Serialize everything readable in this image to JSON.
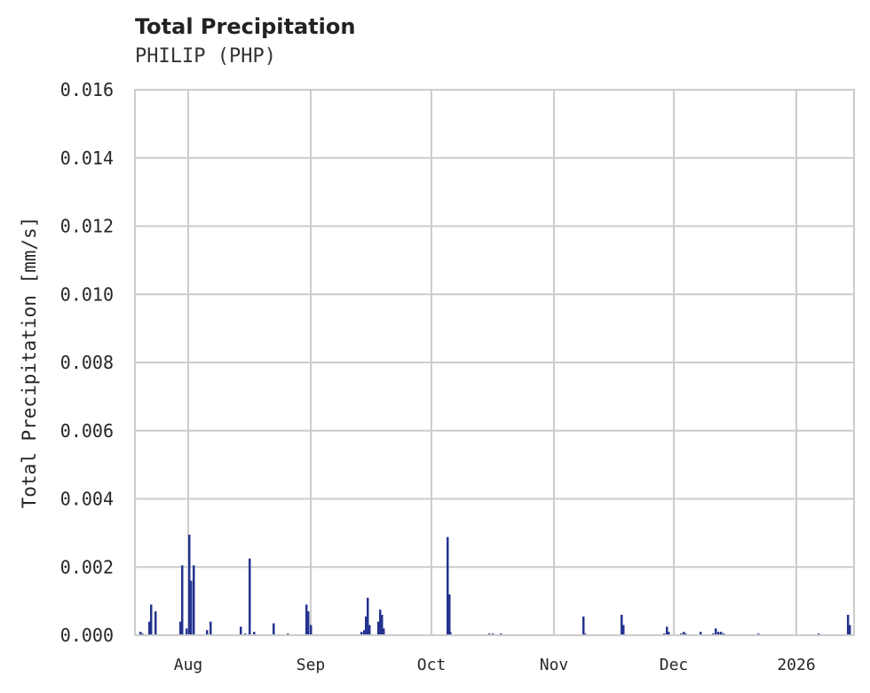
{
  "chart_data": {
    "type": "bar",
    "title": "Total Precipitation",
    "subtitle": "PHILIP (PHP)",
    "xlabel": "",
    "ylabel": "Total Precipitation [mm/s]",
    "ylim": [
      0,
      0.016
    ],
    "yticks": [
      "0.000",
      "0.002",
      "0.004",
      "0.006",
      "0.008",
      "0.010",
      "0.012",
      "0.014",
      "0.016"
    ],
    "xticks": [
      "Aug",
      "Sep",
      "Oct",
      "Nov",
      "Dec",
      "2026"
    ],
    "grid": true,
    "bar_color": "#24338f",
    "series": [
      {
        "name": "Total Precipitation",
        "points": [
          [
            158,
            0.0001
          ],
          [
            160,
            5e-05
          ],
          [
            168,
            0.0004
          ],
          [
            170,
            0.0009
          ],
          [
            175,
            0.0007
          ],
          [
            203,
            0.0004
          ],
          [
            205,
            0.00205
          ],
          [
            210,
            0.0002
          ],
          [
            213,
            0.00295
          ],
          [
            215,
            0.0016
          ],
          [
            218,
            0.00205
          ],
          [
            233,
            0.00015
          ],
          [
            237,
            0.0004
          ],
          [
            271,
            0.00025
          ],
          [
            276,
            5e-05
          ],
          [
            281,
            0.00225
          ],
          [
            286,
            0.0001
          ],
          [
            308,
            0.00035
          ],
          [
            324,
            5e-05
          ],
          [
            345,
            0.0009
          ],
          [
            347,
            0.0007
          ],
          [
            350,
            0.0003
          ],
          [
            407,
            0.0001
          ],
          [
            410,
            0.00015
          ],
          [
            412,
            0.00055
          ],
          [
            414,
            0.0011
          ],
          [
            416,
            0.0003
          ],
          [
            426,
            0.0004
          ],
          [
            428,
            0.00075
          ],
          [
            430,
            0.0006
          ],
          [
            432,
            0.0002
          ],
          [
            504,
            0.00288
          ],
          [
            506,
            0.0012
          ],
          [
            507,
            0.0001
          ],
          [
            551,
            5e-05
          ],
          [
            555,
            5e-05
          ],
          [
            564,
            5e-05
          ],
          [
            657,
            0.00055
          ],
          [
            659,
            5e-05
          ],
          [
            700,
            0.0006
          ],
          [
            702,
            0.0003
          ],
          [
            748,
            5e-05
          ],
          [
            751,
            0.00025
          ],
          [
            753,
            0.0001
          ],
          [
            767,
            5e-05
          ],
          [
            770,
            0.0001
          ],
          [
            772,
            5e-05
          ],
          [
            789,
            0.0001
          ],
          [
            803,
            5e-05
          ],
          [
            806,
            0.0002
          ],
          [
            809,
            0.0001
          ],
          [
            812,
            0.0001
          ],
          [
            815,
            5e-05
          ],
          [
            854,
            5e-05
          ],
          [
            922,
            5e-05
          ],
          [
            955,
            0.0006
          ],
          [
            957,
            0.0003
          ]
        ]
      }
    ]
  }
}
